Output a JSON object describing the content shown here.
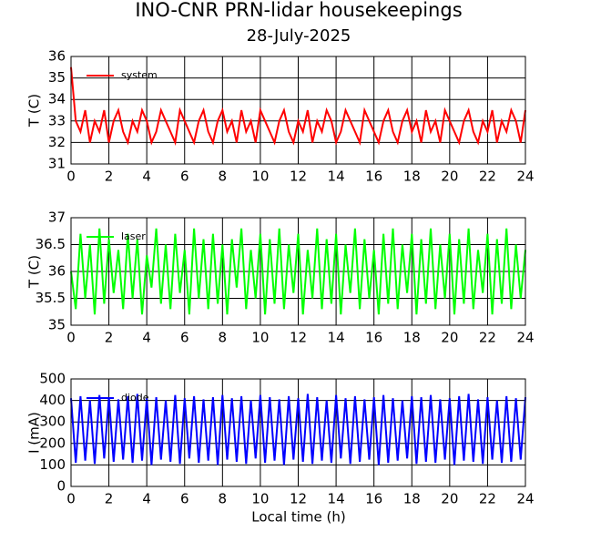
{
  "chart_data": [
    {
      "type": "line",
      "title": "INO-CNR PRN-lidar housekeepings",
      "subtitle": "28-July-2025",
      "y_label": "T (C)",
      "x": [
        0,
        0.25,
        0.5,
        0.75,
        1,
        1.25,
        1.5,
        1.75,
        2,
        2.25,
        2.5,
        2.75,
        3,
        3.25,
        3.5,
        3.75,
        4,
        4.25,
        4.5,
        4.75,
        5,
        5.25,
        5.5,
        5.75,
        6,
        6.25,
        6.5,
        6.75,
        7,
        7.25,
        7.5,
        7.75,
        8,
        8.25,
        8.5,
        8.75,
        9,
        9.25,
        9.5,
        9.75,
        10,
        10.25,
        10.5,
        10.75,
        11,
        11.25,
        11.5,
        11.75,
        12,
        12.25,
        12.5,
        12.75,
        13,
        13.25,
        13.5,
        13.75,
        14,
        14.25,
        14.5,
        14.75,
        15,
        15.25,
        15.5,
        15.75,
        16,
        16.25,
        16.5,
        16.75,
        17,
        17.25,
        17.5,
        17.75,
        18,
        18.25,
        18.5,
        18.75,
        19,
        19.25,
        19.5,
        19.75,
        20,
        20.25,
        20.5,
        20.75,
        21,
        21.25,
        21.5,
        21.75,
        22,
        22.25,
        22.5,
        22.75,
        23,
        23.25,
        23.5,
        23.75,
        24
      ],
      "xlim": [
        0,
        24
      ],
      "xticks": [
        0,
        2,
        4,
        6,
        8,
        10,
        12,
        14,
        16,
        18,
        20,
        22,
        24
      ],
      "ylim": [
        31,
        36
      ],
      "yticks": [
        31,
        32,
        33,
        34,
        35,
        36
      ],
      "grid": true,
      "legend": "upper left",
      "series": [
        {
          "name": "system",
          "color": "#ff0000",
          "values": [
            35.5,
            33,
            32.5,
            33.5,
            32,
            33,
            32.5,
            33.5,
            32,
            33,
            33.5,
            32.5,
            32,
            33,
            32.5,
            33.5,
            33,
            32,
            32.5,
            33.5,
            33,
            32.5,
            32,
            33.5,
            33,
            32.5,
            32,
            33,
            33.5,
            32.5,
            32,
            33,
            33.5,
            32.5,
            33,
            32,
            33.5,
            32.5,
            33,
            32,
            33.5,
            33,
            32.5,
            32,
            33,
            33.5,
            32.5,
            32,
            33,
            32.5,
            33.5,
            32,
            33,
            32.5,
            33.5,
            33,
            32,
            32.5,
            33.5,
            33,
            32.5,
            32,
            33.5,
            33,
            32.5,
            32,
            33,
            33.5,
            32.5,
            32,
            33,
            33.5,
            32.5,
            33,
            32,
            33.5,
            32.5,
            33,
            32,
            33.5,
            33,
            32.5,
            32,
            33,
            33.5,
            32.5,
            32,
            33,
            32.5,
            33.5,
            32,
            33,
            32.5,
            33.5,
            33,
            32,
            33.5
          ]
        }
      ]
    },
    {
      "type": "line",
      "y_label": "T (C)",
      "x": [
        0,
        0.25,
        0.5,
        0.75,
        1,
        1.25,
        1.5,
        1.75,
        2,
        2.25,
        2.5,
        2.75,
        3,
        3.25,
        3.5,
        3.75,
        4,
        4.25,
        4.5,
        4.75,
        5,
        5.25,
        5.5,
        5.75,
        6,
        6.25,
        6.5,
        6.75,
        7,
        7.25,
        7.5,
        7.75,
        8,
        8.25,
        8.5,
        8.75,
        9,
        9.25,
        9.5,
        9.75,
        10,
        10.25,
        10.5,
        10.75,
        11,
        11.25,
        11.5,
        11.75,
        12,
        12.25,
        12.5,
        12.75,
        13,
        13.25,
        13.5,
        13.75,
        14,
        14.25,
        14.5,
        14.75,
        15,
        15.25,
        15.5,
        15.75,
        16,
        16.25,
        16.5,
        16.75,
        17,
        17.25,
        17.5,
        17.75,
        18,
        18.25,
        18.5,
        18.75,
        19,
        19.25,
        19.5,
        19.75,
        20,
        20.25,
        20.5,
        20.75,
        21,
        21.25,
        21.5,
        21.75,
        22,
        22.25,
        22.5,
        22.75,
        23,
        23.25,
        23.5,
        23.75,
        24
      ],
      "xlim": [
        0,
        24
      ],
      "xticks": [
        0,
        2,
        4,
        6,
        8,
        10,
        12,
        14,
        16,
        18,
        20,
        22,
        24
      ],
      "ylim": [
        35,
        37
      ],
      "yticks": [
        35,
        35.5,
        36,
        36.5,
        37
      ],
      "grid": true,
      "legend": "upper left",
      "series": [
        {
          "name": "laser",
          "color": "#00ff00",
          "values": [
            36,
            35.3,
            36.7,
            35.5,
            36.5,
            35.2,
            36.8,
            35.4,
            36.6,
            35.6,
            36.4,
            35.3,
            36.7,
            35.5,
            36.6,
            35.2,
            36.3,
            35.7,
            36.8,
            35.4,
            36.5,
            35.3,
            36.7,
            35.6,
            36.4,
            35.2,
            36.8,
            35.5,
            36.6,
            35.3,
            36.7,
            35.4,
            36.5,
            35.2,
            36.6,
            35.7,
            36.8,
            35.3,
            36.4,
            35.5,
            36.7,
            35.2,
            36.6,
            35.4,
            36.8,
            35.3,
            36.5,
            35.6,
            36.7,
            35.2,
            36.4,
            35.5,
            36.8,
            35.3,
            36.6,
            35.4,
            36.7,
            35.2,
            36.5,
            35.6,
            36.8,
            35.3,
            36.6,
            35.5,
            36.4,
            35.2,
            36.7,
            35.4,
            36.8,
            35.3,
            36.5,
            35.6,
            36.7,
            35.2,
            36.6,
            35.4,
            36.8,
            35.3,
            36.5,
            35.5,
            36.7,
            35.2,
            36.6,
            35.4,
            36.8,
            35.3,
            36.4,
            35.6,
            36.7,
            35.2,
            36.6,
            35.4,
            36.8,
            35.3,
            36.5,
            35.5,
            36.4
          ]
        }
      ]
    },
    {
      "type": "line",
      "y_label": "I (mA)",
      "x_label": "Local time (h)",
      "x": [
        0,
        0.25,
        0.5,
        0.75,
        1,
        1.25,
        1.5,
        1.75,
        2,
        2.25,
        2.5,
        2.75,
        3,
        3.25,
        3.5,
        3.75,
        4,
        4.25,
        4.5,
        4.75,
        5,
        5.25,
        5.5,
        5.75,
        6,
        6.25,
        6.5,
        6.75,
        7,
        7.25,
        7.5,
        7.75,
        8,
        8.25,
        8.5,
        8.75,
        9,
        9.25,
        9.5,
        9.75,
        10,
        10.25,
        10.5,
        10.75,
        11,
        11.25,
        11.5,
        11.75,
        12,
        12.25,
        12.5,
        12.75,
        13,
        13.25,
        13.5,
        13.75,
        14,
        14.25,
        14.5,
        14.75,
        15,
        15.25,
        15.5,
        15.75,
        16,
        16.25,
        16.5,
        16.75,
        17,
        17.25,
        17.5,
        17.75,
        18,
        18.25,
        18.5,
        18.75,
        19,
        19.25,
        19.5,
        19.75,
        20,
        20.25,
        20.5,
        20.75,
        21,
        21.25,
        21.5,
        21.75,
        22,
        22.25,
        22.5,
        22.75,
        23,
        23.25,
        23.5,
        23.75,
        24
      ],
      "xlim": [
        0,
        24
      ],
      "xticks": [
        0,
        2,
        4,
        6,
        8,
        10,
        12,
        14,
        16,
        18,
        20,
        22,
        24
      ],
      "ylim": [
        0,
        500
      ],
      "yticks": [
        0,
        100,
        200,
        300,
        400,
        500
      ],
      "grid": true,
      "legend": "upper left",
      "series": [
        {
          "name": "diode",
          "color": "#0000ff",
          "values": [
            410,
            110,
            420,
            120,
            400,
            105,
            425,
            130,
            415,
            115,
            405,
            125,
            420,
            110,
            430,
            120,
            410,
            100,
            415,
            125,
            400,
            115,
            425,
            105,
            410,
            130,
            420,
            110,
            405,
            120,
            415,
            100,
            425,
            125,
            410,
            115,
            420,
            105,
            400,
            130,
            425,
            110,
            415,
            120,
            405,
            100,
            420,
            125,
            410,
            115,
            430,
            105,
            415,
            120,
            400,
            110,
            425,
            130,
            410,
            105,
            420,
            115,
            405,
            125,
            415,
            100,
            425,
            110,
            410,
            120,
            400,
            130,
            420,
            105,
            415,
            115,
            425,
            110,
            405,
            125,
            410,
            100,
            420,
            120,
            430,
            115,
            405,
            105,
            415,
            125,
            400,
            110,
            420,
            115,
            410,
            125,
            415
          ]
        }
      ]
    }
  ]
}
